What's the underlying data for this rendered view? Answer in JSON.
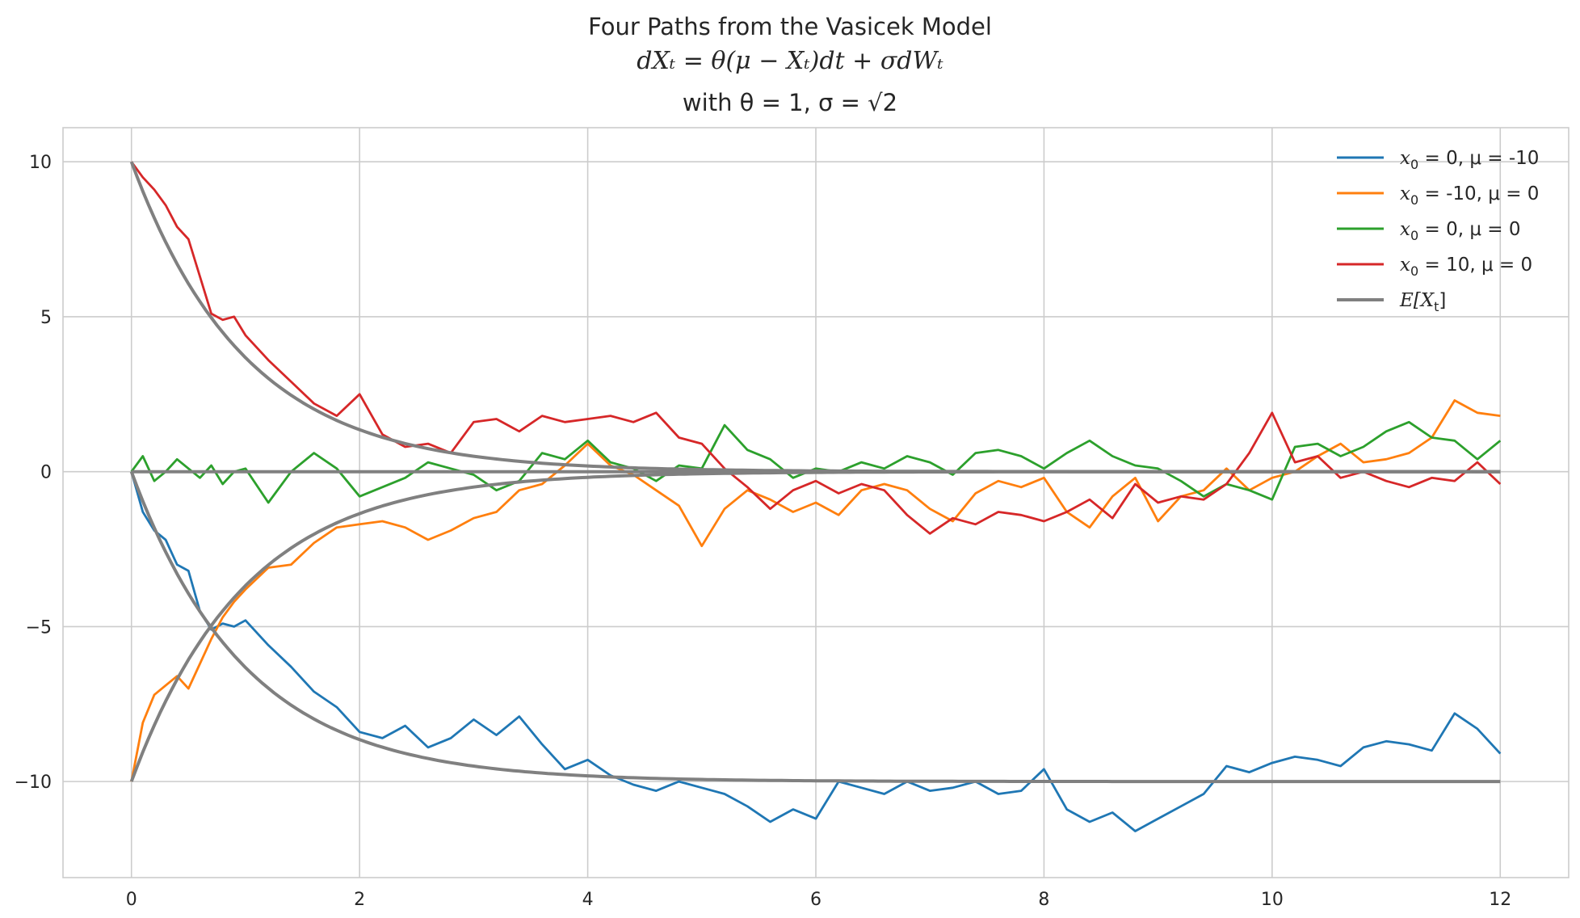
{
  "chart_data": {
    "type": "line",
    "title_lines": [
      "Four Paths from the Vasicek Model",
      "dXₜ = θ(μ − Xₜ)dt + σdWₜ",
      "with θ = 1, σ = √2"
    ],
    "xlabel": "",
    "ylabel": "",
    "xlim": [
      -0.6,
      12.6
    ],
    "ylim": [
      -13.1,
      11.1
    ],
    "xticks": [
      0,
      2,
      4,
      6,
      8,
      10,
      12
    ],
    "xtick_labels": [
      "0",
      "2",
      "4",
      "6",
      "8",
      "10",
      "12"
    ],
    "yticks": [
      10,
      5,
      0,
      -5,
      -10
    ],
    "ytick_labels": [
      "10",
      "5",
      "0",
      "−5",
      "−10"
    ],
    "grid": true,
    "legend_position": "top-right",
    "series": [
      {
        "name": "x0 = 0, μ = -10",
        "legend_math": "x",
        "legend_sub": "0",
        "legend_rest": " = 0, μ = -10",
        "color": "#1f77b4",
        "x": [
          0,
          0.1,
          0.2,
          0.3,
          0.4,
          0.5,
          0.6,
          0.7,
          0.8,
          0.9,
          1.0,
          1.2,
          1.4,
          1.6,
          1.8,
          2.0,
          2.2,
          2.4,
          2.6,
          2.8,
          3.0,
          3.2,
          3.4,
          3.6,
          3.8,
          4.0,
          4.2,
          4.4,
          4.6,
          4.8,
          5.0,
          5.2,
          5.4,
          5.6,
          5.8,
          6.0,
          6.2,
          6.4,
          6.6,
          6.8,
          7.0,
          7.2,
          7.4,
          7.6,
          7.8,
          8.0,
          8.2,
          8.4,
          8.6,
          8.8,
          9.0,
          9.2,
          9.4,
          9.6,
          9.8,
          10.0,
          10.2,
          10.4,
          10.6,
          10.8,
          11.0,
          11.2,
          11.4,
          11.6,
          11.8,
          12.0
        ],
        "y": [
          0,
          -1.3,
          -1.9,
          -2.2,
          -3.0,
          -3.2,
          -4.5,
          -5.1,
          -4.9,
          -5.0,
          -4.8,
          -5.6,
          -6.3,
          -7.1,
          -7.6,
          -8.4,
          -8.6,
          -8.2,
          -8.9,
          -8.6,
          -8.0,
          -8.5,
          -7.9,
          -8.8,
          -9.6,
          -9.3,
          -9.8,
          -10.1,
          -10.3,
          -10.0,
          -10.2,
          -10.4,
          -10.8,
          -11.3,
          -10.9,
          -11.2,
          -10.0,
          -10.2,
          -10.4,
          -10.0,
          -10.3,
          -10.2,
          -10.0,
          -10.4,
          -10.3,
          -9.6,
          -10.9,
          -11.3,
          -11.0,
          -11.6,
          -11.2,
          -10.8,
          -10.4,
          -9.5,
          -9.7,
          -9.4,
          -9.2,
          -9.3,
          -9.5,
          -8.9,
          -8.7,
          -8.8,
          -9.0,
          -7.8,
          -8.3,
          -9.1
        ]
      },
      {
        "name": "x0 = -10, μ = 0",
        "legend_math": "x",
        "legend_sub": "0",
        "legend_rest": " = -10, μ = 0",
        "color": "#ff7f0e",
        "x": [
          0,
          0.1,
          0.2,
          0.3,
          0.4,
          0.5,
          0.6,
          0.7,
          0.8,
          0.9,
          1.0,
          1.2,
          1.4,
          1.6,
          1.8,
          2.0,
          2.2,
          2.4,
          2.6,
          2.8,
          3.0,
          3.2,
          3.4,
          3.6,
          3.8,
          4.0,
          4.2,
          4.4,
          4.6,
          4.8,
          5.0,
          5.2,
          5.4,
          5.6,
          5.8,
          6.0,
          6.2,
          6.4,
          6.6,
          6.8,
          7.0,
          7.2,
          7.4,
          7.6,
          7.8,
          8.0,
          8.2,
          8.4,
          8.6,
          8.8,
          9.0,
          9.2,
          9.4,
          9.6,
          9.8,
          10.0,
          10.2,
          10.4,
          10.6,
          10.8,
          11.0,
          11.2,
          11.4,
          11.6,
          11.8,
          12.0
        ],
        "y": [
          -10,
          -8.1,
          -7.2,
          -6.9,
          -6.6,
          -7.0,
          -6.2,
          -5.4,
          -4.7,
          -4.2,
          -3.8,
          -3.1,
          -3.0,
          -2.3,
          -1.8,
          -1.7,
          -1.6,
          -1.8,
          -2.2,
          -1.9,
          -1.5,
          -1.3,
          -0.6,
          -0.4,
          0.2,
          0.9,
          0.2,
          -0.1,
          -0.6,
          -1.1,
          -2.4,
          -1.2,
          -0.6,
          -0.9,
          -1.3,
          -1.0,
          -1.4,
          -0.6,
          -0.4,
          -0.6,
          -1.2,
          -1.6,
          -0.7,
          -0.3,
          -0.5,
          -0.2,
          -1.3,
          -1.8,
          -0.8,
          -0.2,
          -1.6,
          -0.8,
          -0.6,
          0.1,
          -0.6,
          -0.2,
          0.0,
          0.5,
          0.9,
          0.3,
          0.4,
          0.6,
          1.1,
          2.3,
          1.9,
          1.8
        ]
      },
      {
        "name": "x0 = 0, μ = 0",
        "legend_math": "x",
        "legend_sub": "0",
        "legend_rest": " = 0, μ = 0",
        "color": "#2ca02c",
        "x": [
          0,
          0.1,
          0.2,
          0.3,
          0.4,
          0.5,
          0.6,
          0.7,
          0.8,
          0.9,
          1.0,
          1.2,
          1.4,
          1.6,
          1.8,
          2.0,
          2.2,
          2.4,
          2.6,
          2.8,
          3.0,
          3.2,
          3.4,
          3.6,
          3.8,
          4.0,
          4.2,
          4.4,
          4.6,
          4.8,
          5.0,
          5.2,
          5.4,
          5.6,
          5.8,
          6.0,
          6.2,
          6.4,
          6.6,
          6.8,
          7.0,
          7.2,
          7.4,
          7.6,
          7.8,
          8.0,
          8.2,
          8.4,
          8.6,
          8.8,
          9.0,
          9.2,
          9.4,
          9.6,
          9.8,
          10.0,
          10.2,
          10.4,
          10.6,
          10.8,
          11.0,
          11.2,
          11.4,
          11.6,
          11.8,
          12.0
        ],
        "y": [
          0,
          0.5,
          -0.3,
          0.0,
          0.4,
          0.1,
          -0.2,
          0.2,
          -0.4,
          0.0,
          0.1,
          -1.0,
          0.0,
          0.6,
          0.1,
          -0.8,
          -0.5,
          -0.2,
          0.3,
          0.1,
          -0.1,
          -0.6,
          -0.3,
          0.6,
          0.4,
          1.0,
          0.3,
          0.1,
          -0.3,
          0.2,
          0.1,
          1.5,
          0.7,
          0.4,
          -0.2,
          0.1,
          0.0,
          0.3,
          0.1,
          0.5,
          0.3,
          -0.1,
          0.6,
          0.7,
          0.5,
          0.1,
          0.6,
          1.0,
          0.5,
          0.2,
          0.1,
          -0.3,
          -0.8,
          -0.4,
          -0.6,
          -0.9,
          0.8,
          0.9,
          0.5,
          0.8,
          1.3,
          1.6,
          1.1,
          1.0,
          0.4,
          1.0
        ]
      },
      {
        "name": "x0 = 10, μ = 0",
        "legend_math": "x",
        "legend_sub": "0",
        "legend_rest": " = 10, μ = 0",
        "color": "#d62728",
        "x": [
          0,
          0.1,
          0.2,
          0.3,
          0.4,
          0.5,
          0.6,
          0.7,
          0.8,
          0.9,
          1.0,
          1.2,
          1.4,
          1.6,
          1.8,
          2.0,
          2.2,
          2.4,
          2.6,
          2.8,
          3.0,
          3.2,
          3.4,
          3.6,
          3.8,
          4.0,
          4.2,
          4.4,
          4.6,
          4.8,
          5.0,
          5.2,
          5.4,
          5.6,
          5.8,
          6.0,
          6.2,
          6.4,
          6.6,
          6.8,
          7.0,
          7.2,
          7.4,
          7.6,
          7.8,
          8.0,
          8.2,
          8.4,
          8.6,
          8.8,
          9.0,
          9.2,
          9.4,
          9.6,
          9.8,
          10.0,
          10.2,
          10.4,
          10.6,
          10.8,
          11.0,
          11.2,
          11.4,
          11.6,
          11.8,
          12.0
        ],
        "y": [
          10,
          9.5,
          9.1,
          8.6,
          7.9,
          7.5,
          6.3,
          5.1,
          4.9,
          5.0,
          4.4,
          3.6,
          2.9,
          2.2,
          1.8,
          2.5,
          1.2,
          0.8,
          0.9,
          0.6,
          1.6,
          1.7,
          1.3,
          1.8,
          1.6,
          1.7,
          1.8,
          1.6,
          1.9,
          1.1,
          0.9,
          0.1,
          -0.5,
          -1.2,
          -0.6,
          -0.3,
          -0.7,
          -0.4,
          -0.6,
          -1.4,
          -2.0,
          -1.5,
          -1.7,
          -1.3,
          -1.4,
          -1.6,
          -1.3,
          -0.9,
          -1.5,
          -0.4,
          -1.0,
          -0.8,
          -0.9,
          -0.4,
          0.6,
          1.9,
          0.3,
          0.5,
          -0.2,
          0.0,
          -0.3,
          -0.5,
          -0.2,
          -0.3,
          0.3,
          -0.4
        ]
      },
      {
        "name": "E[Xt]",
        "legend_math": "E[X",
        "legend_sub": "t",
        "legend_rest": "]",
        "color": "#808080",
        "expected": true,
        "starts": [
          [
            0,
            -10
          ],
          [
            -10,
            0
          ],
          [
            0,
            0
          ],
          [
            10,
            0
          ]
        ]
      }
    ]
  }
}
